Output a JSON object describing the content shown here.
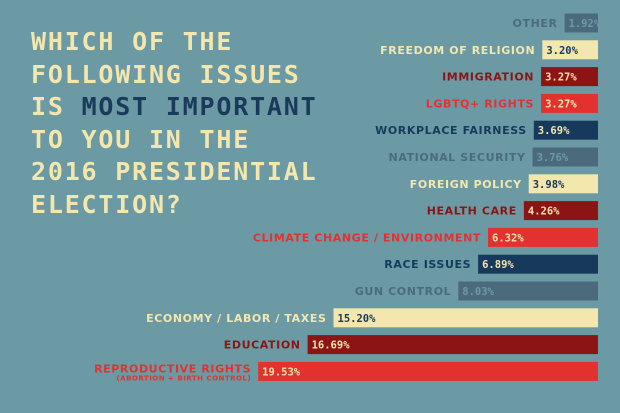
{
  "title": {
    "line1": "WHICH OF THE",
    "line2": "FOLLOWING ISSUES",
    "line3a": "IS ",
    "line3b": "MOST IMPORTANT",
    "line4": "TO YOU IN THE",
    "line5": "2016 PRESIDENTIAL",
    "line6": "ELECTION?"
  },
  "colors": {
    "background": "#6b9aa5",
    "cream": "#f3e7ae",
    "dark_red": "#8c1414",
    "red": "#e2312f",
    "navy": "#173a5c",
    "slate": "#4b6b7c"
  },
  "chart_data": {
    "type": "bar",
    "orientation": "horizontal",
    "unit": "%",
    "categories": [
      "OTHER",
      "FREEDOM OF RELIGION",
      "IMMIGRATION",
      "LGBTQ+ RIGHTS",
      "WORKPLACE FAIRNESS",
      "NATIONAL SECURITY",
      "FOREIGN POLICY",
      "HEALTH CARE",
      "CLIMATE CHANGE / ENVIRONMENT",
      "RACE ISSUES",
      "GUN CONTROL",
      "ECONOMY / LABOR / TAXES",
      "EDUCATION",
      "REPRODUCTIVE RIGHTS"
    ],
    "sublabels": [
      "",
      "",
      "",
      "",
      "",
      "",
      "",
      "",
      "",
      "",
      "",
      "",
      "",
      "(ABORTION + BIRTH CONTROL)"
    ],
    "values": [
      1.92,
      3.2,
      3.27,
      3.27,
      3.69,
      3.76,
      3.98,
      4.26,
      6.32,
      6.89,
      8.03,
      15.2,
      16.69,
      19.53
    ],
    "value_labels": [
      "1.92%",
      "3.20%",
      "3.27%",
      "3.27%",
      "3.69%",
      "3.76%",
      "3.98%",
      "4.26%",
      "6.32%",
      "6.89%",
      "8.03%",
      "15.20%",
      "16.69%",
      "19.53%"
    ],
    "bar_colors": [
      "#4b6b7c",
      "#f3e7ae",
      "#8c1414",
      "#e2312f",
      "#173a5c",
      "#4b6b7c",
      "#f3e7ae",
      "#8c1414",
      "#e2312f",
      "#173a5c",
      "#4b6b7c",
      "#f3e7ae",
      "#8c1414",
      "#e2312f"
    ],
    "label_colors": [
      "#4b6b7c",
      "#f3e7ae",
      "#8c1414",
      "#e2312f",
      "#173a5c",
      "#4b6b7c",
      "#f3e7ae",
      "#8c1414",
      "#e2312f",
      "#173a5c",
      "#4b6b7c",
      "#f3e7ae",
      "#8c1414",
      "#e2312f"
    ],
    "value_text_colors": [
      "#6b9aa5",
      "#173a5c",
      "#f3e7ae",
      "#f3e7ae",
      "#f3e7ae",
      "#6b9aa5",
      "#173a5c",
      "#f3e7ae",
      "#f3e7ae",
      "#f3e7ae",
      "#6b9aa5",
      "#173a5c",
      "#f3e7ae",
      "#f3e7ae"
    ]
  }
}
